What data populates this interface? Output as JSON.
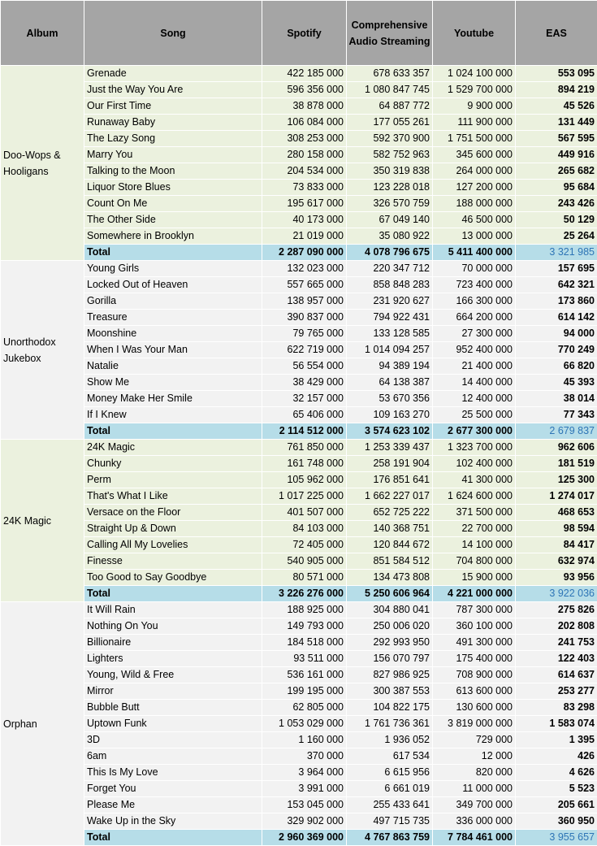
{
  "headers": {
    "album": "Album",
    "song": "Song",
    "spotify": "Spotify",
    "cas": "Comprehensive Audio Streaming",
    "youtube": "Youtube",
    "eas": "EAS"
  },
  "colors": {
    "header_bg": "#a5a5a5",
    "row_light": "#f2f2f2",
    "row_green": "#ebf1de",
    "total_bg": "#b6dde8",
    "total_eas_text": "#2e75b6"
  },
  "groups": [
    {
      "album": "Doo-Wops & Hooligans",
      "bg": "#ebf1de",
      "songs": [
        {
          "song": "Grenade",
          "spotify": "422 185 000",
          "cas": "678 633 357",
          "youtube": "1 024 100 000",
          "eas": "553 095"
        },
        {
          "song": "Just the Way You Are",
          "spotify": "596 356 000",
          "cas": "1 080 847 745",
          "youtube": "1 529 700 000",
          "eas": "894 219"
        },
        {
          "song": "Our First Time",
          "spotify": "38 878 000",
          "cas": "64 887 772",
          "youtube": "9 900 000",
          "eas": "45 526"
        },
        {
          "song": "Runaway Baby",
          "spotify": "106 084 000",
          "cas": "177 055 261",
          "youtube": "111 900 000",
          "eas": "131 449"
        },
        {
          "song": "The Lazy Song",
          "spotify": "308 253 000",
          "cas": "592 370 900",
          "youtube": "1 751 500 000",
          "eas": "567 595"
        },
        {
          "song": "Marry You",
          "spotify": "280 158 000",
          "cas": "582 752 963",
          "youtube": "345 600 000",
          "eas": "449 916"
        },
        {
          "song": "Talking to the Moon",
          "spotify": "204 534 000",
          "cas": "350 319 838",
          "youtube": "264 000 000",
          "eas": "265 682"
        },
        {
          "song": "Liquor Store Blues",
          "spotify": "73 833 000",
          "cas": "123 228 018",
          "youtube": "127 200 000",
          "eas": "95 684"
        },
        {
          "song": "Count On Me",
          "spotify": "195 617 000",
          "cas": "326 570 759",
          "youtube": "188 000 000",
          "eas": "243 426"
        },
        {
          "song": "The Other Side",
          "spotify": "40 173 000",
          "cas": "67 049 140",
          "youtube": "46 500 000",
          "eas": "50 129"
        },
        {
          "song": "Somewhere in Brooklyn",
          "spotify": "21 019 000",
          "cas": "35 080 922",
          "youtube": "13 000 000",
          "eas": "25 264"
        }
      ],
      "total": {
        "label": "Total",
        "spotify": "2 287 090 000",
        "cas": "4 078 796 675",
        "youtube": "5 411 400 000",
        "eas": "3 321 985"
      }
    },
    {
      "album": "Unorthodox Jukebox",
      "bg": "#f2f2f2",
      "songs": [
        {
          "song": "Young Girls",
          "spotify": "132 023 000",
          "cas": "220 347 712",
          "youtube": "70 000 000",
          "eas": "157 695"
        },
        {
          "song": "Locked Out of Heaven",
          "spotify": "557 665 000",
          "cas": "858 848 283",
          "youtube": "723 400 000",
          "eas": "642 321"
        },
        {
          "song": "Gorilla",
          "spotify": "138 957 000",
          "cas": "231 920 627",
          "youtube": "166 300 000",
          "eas": "173 860"
        },
        {
          "song": "Treasure",
          "spotify": "390 837 000",
          "cas": "794 922 431",
          "youtube": "664 200 000",
          "eas": "614 142"
        },
        {
          "song": "Moonshine",
          "spotify": "79 765 000",
          "cas": "133 128 585",
          "youtube": "27 300 000",
          "eas": "94 000"
        },
        {
          "song": "When I Was Your Man",
          "spotify": "622 719 000",
          "cas": "1 014 094 257",
          "youtube": "952 400 000",
          "eas": "770 249"
        },
        {
          "song": "Natalie",
          "spotify": "56 554 000",
          "cas": "94 389 194",
          "youtube": "21 400 000",
          "eas": "66 820"
        },
        {
          "song": "Show Me",
          "spotify": "38 429 000",
          "cas": "64 138 387",
          "youtube": "14 400 000",
          "eas": "45 393"
        },
        {
          "song": "Money Make Her Smile",
          "spotify": "32 157 000",
          "cas": "53 670 356",
          "youtube": "12 400 000",
          "eas": "38 014"
        },
        {
          "song": "If I Knew",
          "spotify": "65 406 000",
          "cas": "109 163 270",
          "youtube": "25 500 000",
          "eas": "77 343"
        }
      ],
      "total": {
        "label": "Total",
        "spotify": "2 114 512 000",
        "cas": "3 574 623 102",
        "youtube": "2 677 300 000",
        "eas": "2 679 837"
      }
    },
    {
      "album": "24K Magic",
      "bg": "#ebf1de",
      "songs": [
        {
          "song": "24K Magic",
          "spotify": "761 850 000",
          "cas": "1 253 339 437",
          "youtube": "1 323 700 000",
          "eas": "962 606"
        },
        {
          "song": "Chunky",
          "spotify": "161 748 000",
          "cas": "258 191 904",
          "youtube": "102 400 000",
          "eas": "181 519"
        },
        {
          "song": "Perm",
          "spotify": "105 962 000",
          "cas": "176 851 641",
          "youtube": "41 300 000",
          "eas": "125 300"
        },
        {
          "song": "That's What I Like",
          "spotify": "1 017 225 000",
          "cas": "1 662 227 017",
          "youtube": "1 624 600 000",
          "eas": "1 274 017"
        },
        {
          "song": "Versace on the Floor",
          "spotify": "401 507 000",
          "cas": "652 725 222",
          "youtube": "371 500 000",
          "eas": "468 653"
        },
        {
          "song": "Straight Up & Down",
          "spotify": "84 103 000",
          "cas": "140 368 751",
          "youtube": "22 700 000",
          "eas": "98 594"
        },
        {
          "song": "Calling All My Lovelies",
          "spotify": "72 405 000",
          "cas": "120 844 672",
          "youtube": "14 100 000",
          "eas": "84 417"
        },
        {
          "song": "Finesse",
          "spotify": "540 905 000",
          "cas": "851 584 512",
          "youtube": "704 800 000",
          "eas": "632 974"
        },
        {
          "song": "Too Good to Say Goodbye",
          "spotify": "80 571 000",
          "cas": "134 473 808",
          "youtube": "15 900 000",
          "eas": "93 956"
        }
      ],
      "total": {
        "label": "Total",
        "spotify": "3 226 276 000",
        "cas": "5 250 606 964",
        "youtube": "4 221 000 000",
        "eas": "3 922 036"
      }
    },
    {
      "album": "Orphan",
      "bg": "#f2f2f2",
      "songs": [
        {
          "song": "It Will Rain",
          "spotify": "188 925 000",
          "cas": "304 880 041",
          "youtube": "787 300 000",
          "eas": "275 826"
        },
        {
          "song": "Nothing On You",
          "spotify": "149 793 000",
          "cas": "250 006 020",
          "youtube": "360 100 000",
          "eas": "202 808"
        },
        {
          "song": "Billionaire",
          "spotify": "184 518 000",
          "cas": "292 993 950",
          "youtube": "491 300 000",
          "eas": "241 753"
        },
        {
          "song": "Lighters",
          "spotify": "93 511 000",
          "cas": "156 070 797",
          "youtube": "175 400 000",
          "eas": "122 403"
        },
        {
          "song": "Young, Wild & Free",
          "spotify": "536 161 000",
          "cas": "827 986 925",
          "youtube": "708 900 000",
          "eas": "614 637"
        },
        {
          "song": "Mirror",
          "spotify": "199 195 000",
          "cas": "300 387 553",
          "youtube": "613 600 000",
          "eas": "253 277"
        },
        {
          "song": "Bubble Butt",
          "spotify": "62 805 000",
          "cas": "104 822 175",
          "youtube": "130 600 000",
          "eas": "83 298"
        },
        {
          "song": "Uptown Funk",
          "spotify": "1 053 029 000",
          "cas": "1 761 736 361",
          "youtube": "3 819 000 000",
          "eas": "1 583 074"
        },
        {
          "song": "3D",
          "spotify": "1 160 000",
          "cas": "1 936 052",
          "youtube": "729 000",
          "eas": "1 395"
        },
        {
          "song": "6am",
          "spotify": "370 000",
          "cas": "617 534",
          "youtube": "12 000",
          "eas": "426"
        },
        {
          "song": "This Is My Love",
          "spotify": "3 964 000",
          "cas": "6 615 956",
          "youtube": "820 000",
          "eas": "4 626"
        },
        {
          "song": "Forget You",
          "spotify": "3 991 000",
          "cas": "6 661 019",
          "youtube": "11 000 000",
          "eas": "5 523"
        },
        {
          "song": "Please Me",
          "spotify": "153 045 000",
          "cas": "255 433 641",
          "youtube": "349 700 000",
          "eas": "205 661"
        },
        {
          "song": "Wake Up in the Sky",
          "spotify": "329 902 000",
          "cas": "497 715 735",
          "youtube": "336 000 000",
          "eas": "360 950"
        }
      ],
      "total": {
        "label": "Total",
        "spotify": "2 960 369 000",
        "cas": "4 767 863 759",
        "youtube": "7 784 461 000",
        "eas": "3 955 657"
      }
    }
  ]
}
